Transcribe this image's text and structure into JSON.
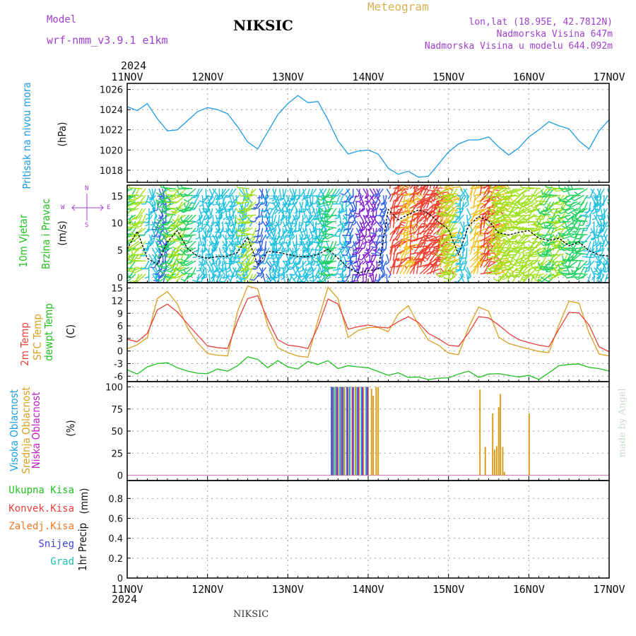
{
  "header": {
    "model_label": "Model",
    "model_value": "wrf-nmm_v3.9.1  e1km",
    "station": "NIKSIC",
    "meteogram": "Meteogram",
    "lonlat": "lon,lat (18.95E, 42.7812N)",
    "altitude": "Nadmorska Visina 647m",
    "model_altitude": "Nadmorska Visina u modelu 644.092m",
    "year_top": "2024",
    "year_bottom": "2024",
    "footer": "NIKSIC",
    "watermark": "made by Angel"
  },
  "colors": {
    "pressure": "#1e9be6",
    "temp2m": "#e8403c",
    "sfc": "#d9a020",
    "dewpt": "#20c020",
    "high_cloud": "#1aa0e0",
    "mid_cloud": "#d9a020",
    "low_cloud": "#9030c0",
    "purple_label": "#a040d0",
    "gold_label": "#d8b050"
  },
  "chart_data": [
    {
      "type": "line",
      "panel": "pressure",
      "ylabel_left": "Pritisak na nivou mora",
      "ylabel_unit": "(hPa)",
      "yticks": [
        "1018",
        "1020",
        "1022",
        "1024",
        "1026"
      ],
      "ylim": [
        1016.8,
        1026.6
      ],
      "xticks": [
        "11NOV",
        "12NOV",
        "13NOV",
        "14NOV",
        "15NOV",
        "16NOV",
        "17NOV"
      ],
      "x_hours": [
        0,
        3,
        6,
        9,
        12,
        15,
        18,
        21,
        24,
        27,
        30,
        33,
        36,
        39,
        42,
        45,
        48,
        51,
        54,
        57,
        60,
        63,
        66,
        69,
        72,
        75,
        78,
        81,
        84,
        87,
        90,
        93,
        96,
        99,
        102,
        105,
        108,
        111,
        114,
        117,
        120,
        123,
        126,
        129,
        132,
        135,
        138,
        141,
        144
      ],
      "series": [
        {
          "values": [
            1024.3,
            1023.9,
            1024.6,
            1023.1,
            1021.9,
            1022.0,
            1022.9,
            1023.8,
            1024.2,
            1024.0,
            1023.6,
            1022.3,
            1020.8,
            1020.1,
            1021.8,
            1023.5,
            1024.6,
            1025.4,
            1024.7,
            1024.8,
            1023.0,
            1020.9,
            1019.6,
            1019.9,
            1020.0,
            1019.6,
            1018.2,
            1017.6,
            1017.9,
            1017.3,
            1017.4,
            1018.6,
            1019.8,
            1020.6,
            1021.0,
            1021.0,
            1021.3,
            1020.3,
            1019.5,
            1020.2,
            1021.3,
            1022.0,
            1022.8,
            1022.4,
            1022.1,
            1020.9,
            1020.1,
            1021.9,
            1023.0
          ]
        }
      ]
    },
    {
      "type": "line",
      "panel": "wind",
      "ylabel_left": [
        "10m Vjetar",
        "Brzina i Pravac"
      ],
      "ylabel_unit": "(m/s)",
      "compass": [
        "N",
        "E",
        "S",
        "W"
      ],
      "yticks": [
        "0",
        "5",
        "10",
        "15"
      ],
      "ylim": [
        -1,
        17
      ],
      "series": [
        {
          "name": "wind speed",
          "values": [
            5.2,
            8.5,
            3.5,
            2.4,
            6.5,
            8.6,
            5.3,
            3.9,
            3.5,
            3.8,
            3.9,
            4.6,
            7.4,
            2.3,
            4.8,
            4.6,
            4.2,
            3.8,
            3.8,
            4.2,
            5.2,
            3.5,
            1.8,
            0.8,
            1.2,
            1.5,
            12.5,
            10.6,
            11.6,
            12.4,
            11.8,
            10.2,
            8.8,
            4.2,
            9.5,
            11.2,
            10.4,
            8.2,
            7.8,
            8.3,
            8.6,
            7.2,
            6.8,
            7.2,
            5.8,
            6.5,
            4.9,
            4.1,
            3.9
          ]
        }
      ]
    },
    {
      "type": "line",
      "panel": "temperature",
      "ylabel_left": [
        "2m Temp",
        "SFC Temp",
        "dewpt Temp"
      ],
      "ylabel_unit": "(C)",
      "yticks": [
        "-6",
        "-3",
        "0",
        "3",
        "6",
        "9",
        "12",
        "15"
      ],
      "ylim": [
        -7.3,
        16.3
      ],
      "series": [
        {
          "name": "2m Temp",
          "values": [
            2.8,
            2.2,
            4.2,
            9.8,
            11.2,
            9.3,
            6.5,
            3.8,
            1.2,
            0.8,
            0.6,
            7.2,
            12.5,
            13.2,
            7.5,
            2.7,
            1.4,
            1.1,
            0.6,
            5.8,
            12.4,
            11.2,
            5.2,
            5.8,
            6.2,
            5.7,
            5.5,
            7.0,
            8.2,
            6.8,
            4.2,
            2.9,
            1.4,
            1.1,
            4.3,
            8.2,
            7.9,
            6.2,
            4.2,
            2.7,
            2.0,
            1.4,
            1.0,
            5.2,
            9.2,
            9.1,
            6.2,
            1.0,
            -0.2
          ]
        },
        {
          "name": "SFC Temp",
          "values": [
            0.5,
            1.5,
            3.2,
            12.5,
            14.2,
            11.2,
            5.5,
            2.0,
            -0.6,
            -1.0,
            -1.2,
            9.5,
            15.5,
            14.8,
            6.0,
            0.8,
            -0.4,
            -1.2,
            -1.5,
            7.3,
            15.2,
            12.5,
            3.2,
            4.9,
            5.6,
            5.6,
            4.6,
            8.9,
            10.8,
            6.3,
            2.6,
            1.4,
            -0.5,
            -0.9,
            5.6,
            10.5,
            9.5,
            3.3,
            1.8,
            1.1,
            0.5,
            -0.1,
            -0.4,
            6.2,
            11.9,
            11.4,
            4.3,
            -0.7,
            -1.2
          ]
        },
        {
          "name": "dewpt Temp",
          "values": [
            -4.5,
            -5.5,
            -3.8,
            -3.0,
            -2.8,
            -4.0,
            -4.8,
            -5.3,
            -5.4,
            -4.3,
            -4.8,
            -3.5,
            -1.4,
            -2.0,
            -4.0,
            -2.3,
            -3.8,
            -4.3,
            -2.5,
            -3.2,
            -2.3,
            -4.2,
            -3.5,
            -3.8,
            -4.0,
            -4.9,
            -5.8,
            -5.2,
            -6.3,
            -6.2,
            -6.8,
            -6.5,
            -6.4,
            -5.5,
            -4.8,
            -6.3,
            -5.5,
            -5.4,
            -5.8,
            -6.2,
            -5.8,
            -6.8,
            -5.2,
            -3.5,
            -3.2,
            -3.1,
            -3.9,
            -4.2,
            -4.8
          ]
        }
      ]
    },
    {
      "type": "bar",
      "panel": "cloud",
      "ylabel_left": [
        "Visoka Oblacnost",
        "Srednja Oblacnost",
        "Niska Oblacnost"
      ],
      "ylabel_unit": "(%)",
      "yticks": [
        "0",
        "25",
        "50",
        "75",
        "100"
      ],
      "ylim": [
        -6,
        106
      ],
      "high_cloud": {
        "hours": [
          61,
          61.7,
          62.5,
          63.6,
          64.5,
          65.6,
          66.5,
          67.6,
          68.7,
          70.0,
          71.4
        ],
        "values": [
          100,
          100,
          100,
          100,
          100,
          100,
          100,
          100,
          100,
          100,
          100
        ]
      },
      "mid_cloud": {
        "hours": [
          61.4,
          62.2,
          63.0,
          64.0,
          64.9,
          66.0,
          67.2,
          68.2,
          69.3,
          70.6,
          72.0,
          73.0,
          73.5,
          74.4,
          75.0,
          105.4,
          107.0,
          109.2,
          109.8,
          110.4,
          111.0,
          111.5,
          112.2,
          112.7,
          120.1
        ],
        "values": [
          100,
          100,
          100,
          100,
          100,
          100,
          100,
          100,
          100,
          100,
          100,
          98,
          90,
          100,
          100,
          97,
          32,
          70,
          29,
          33,
          77,
          92,
          32,
          4,
          70
        ]
      },
      "low_cloud": {
        "hours": [
          61.2,
          62.8,
          64.2,
          65.8,
          67.4,
          69.0,
          70.3,
          71.8
        ],
        "values": [
          100,
          100,
          100,
          100,
          100,
          100,
          100,
          100
        ]
      }
    },
    {
      "type": "line",
      "panel": "precip",
      "ylabel_unit": [
        "1hr Precip",
        "(mm)"
      ],
      "legend": [
        "Ukupna Kisa",
        "Konvek.Kisa",
        "Zaledj.Kisa",
        "Snijeg",
        "Grad"
      ],
      "yticks": [
        "0",
        "0.2",
        "0.4",
        "0.6",
        "0.8"
      ],
      "ylim": [
        0,
        0.98
      ],
      "series": []
    }
  ]
}
